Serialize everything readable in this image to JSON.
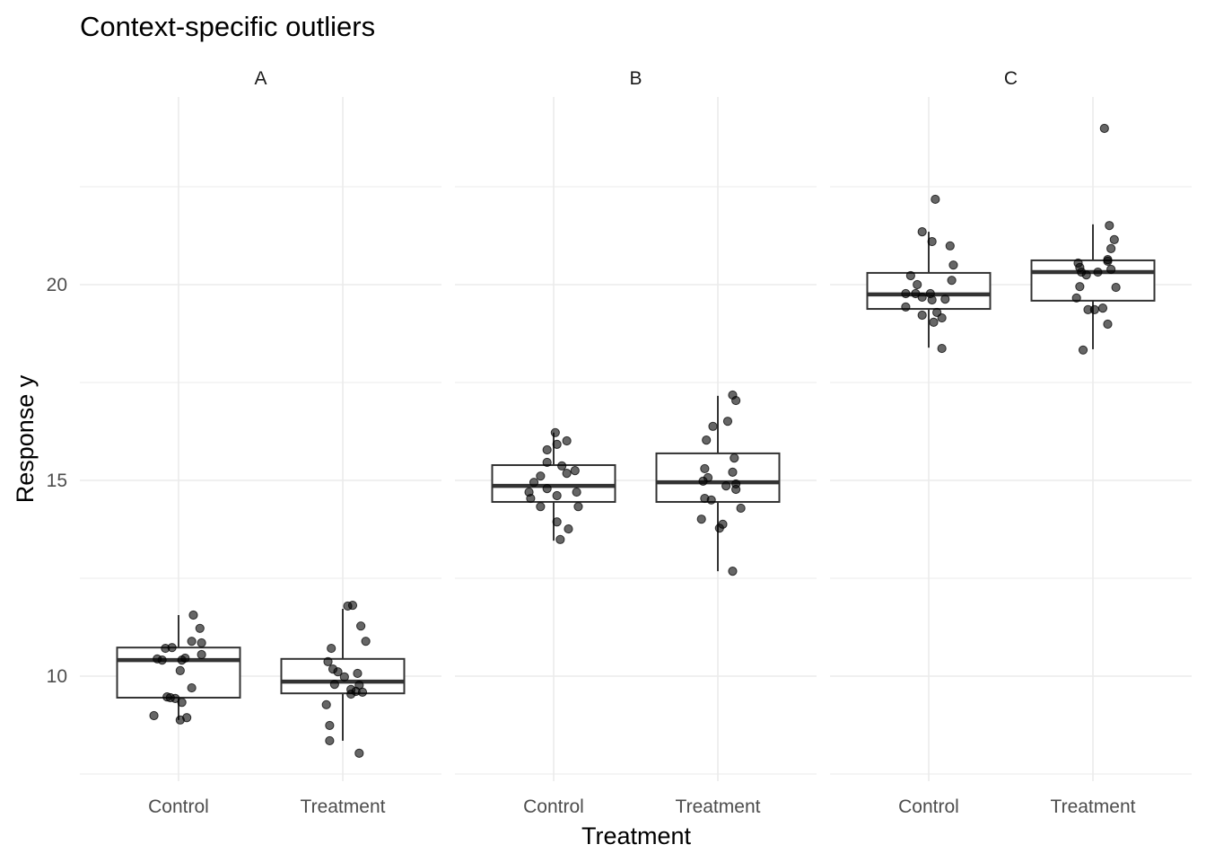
{
  "chart_data": {
    "type": "boxplot",
    "title": "Context-specific outliers",
    "xlabel": "Treatment",
    "ylabel": "Response y",
    "ylim": [
      7.3,
      24.6
    ],
    "yticks": [
      10,
      15,
      20
    ],
    "ytick_labels": [
      "10",
      "15",
      "20"
    ],
    "y_minor_gridlines": [
      7.5,
      12.5,
      17.5,
      22.5
    ],
    "grid": true,
    "categories": [
      "Control",
      "Treatment"
    ],
    "facets": [
      {
        "label": "A",
        "groups": [
          {
            "name": "Control",
            "box": {
              "lower_whisker": 8.88,
              "q1": 9.45,
              "median": 10.41,
              "q3": 10.73,
              "upper_whisker": 11.56
            },
            "points": [
              11.56,
              11.22,
              10.89,
              10.85,
              10.73,
              10.71,
              10.55,
              10.44,
              10.41,
              10.41,
              10.46,
              10.14,
              9.7,
              9.47,
              9.45,
              9.43,
              9.33,
              8.99,
              8.88,
              8.94
            ],
            "jitter": [
              0.09,
              0.13,
              0.08,
              0.14,
              -0.04,
              -0.08,
              0.14,
              -0.13,
              -0.1,
              0.02,
              0.04,
              0.01,
              0.08,
              -0.07,
              -0.05,
              -0.02,
              0.02,
              -0.15,
              0.01,
              0.05
            ]
          },
          {
            "name": "Treatment",
            "box": {
              "lower_whisker": 8.35,
              "q1": 9.56,
              "median": 9.86,
              "q3": 10.44,
              "upper_whisker": 11.72
            },
            "points": [
              11.79,
              11.81,
              11.28,
              10.89,
              10.71,
              10.37,
              10.18,
              10.11,
              9.98,
              10.07,
              9.79,
              9.77,
              9.66,
              9.61,
              9.59,
              9.54,
              9.27,
              8.74,
              8.35,
              8.03
            ],
            "jitter": [
              0.03,
              0.06,
              0.11,
              0.14,
              -0.07,
              -0.09,
              -0.06,
              -0.03,
              0.01,
              0.09,
              -0.05,
              0.1,
              0.05,
              0.08,
              0.12,
              0.05,
              -0.1,
              -0.08,
              -0.08,
              0.1
            ]
          }
        ]
      },
      {
        "label": "B",
        "groups": [
          {
            "name": "Control",
            "box": {
              "lower_whisker": 13.46,
              "q1": 14.45,
              "median": 14.86,
              "q3": 15.39,
              "upper_whisker": 16.22
            },
            "points": [
              16.22,
              16.01,
              15.92,
              15.78,
              15.46,
              15.37,
              15.25,
              15.18,
              15.11,
              14.95,
              14.79,
              14.7,
              14.7,
              14.61,
              14.54,
              14.33,
              14.33,
              13.94,
              13.76,
              13.49
            ],
            "jitter": [
              0.01,
              0.08,
              0.02,
              -0.04,
              -0.04,
              0.05,
              0.13,
              0.08,
              -0.08,
              -0.12,
              -0.04,
              -0.15,
              0.14,
              0.02,
              -0.14,
              -0.08,
              0.15,
              0.02,
              0.09,
              0.04
            ]
          },
          {
            "name": "Treatment",
            "box": {
              "lower_whisker": 12.68,
              "q1": 14.45,
              "median": 14.95,
              "q3": 15.69,
              "upper_whisker": 17.16
            },
            "points": [
              17.18,
              17.04,
              16.51,
              16.38,
              16.03,
              15.57,
              15.3,
              15.21,
              15.07,
              14.98,
              14.86,
              14.91,
              14.77,
              14.54,
              14.5,
              14.29,
              14.01,
              13.88,
              13.78,
              12.68
            ],
            "jitter": [
              0.09,
              0.11,
              0.06,
              -0.03,
              -0.07,
              0.1,
              -0.08,
              0.09,
              -0.06,
              -0.09,
              0.05,
              0.11,
              0.11,
              -0.08,
              -0.04,
              0.14,
              -0.1,
              0.03,
              0.01,
              0.09
            ]
          }
        ]
      },
      {
        "label": "C",
        "groups": [
          {
            "name": "Control",
            "box": {
              "lower_whisker": 18.39,
              "q1": 19.38,
              "median": 19.75,
              "q3": 20.3,
              "upper_whisker": 21.35
            },
            "points": [
              22.18,
              21.35,
              21.1,
              20.99,
              20.5,
              20.23,
              20.11,
              20.0,
              19.77,
              19.77,
              19.77,
              19.68,
              19.61,
              19.63,
              19.43,
              19.22,
              19.29,
              19.15,
              19.04,
              18.37
            ],
            "jitter": [
              0.04,
              -0.04,
              0.02,
              0.13,
              0.15,
              -0.11,
              0.14,
              -0.07,
              -0.14,
              -0.08,
              0.01,
              -0.04,
              0.02,
              0.1,
              -0.14,
              -0.04,
              0.05,
              0.08,
              0.03,
              0.08
            ]
          },
          {
            "name": "Treatment",
            "box": {
              "lower_whisker": 18.35,
              "q1": 19.59,
              "median": 20.32,
              "q3": 20.62,
              "upper_whisker": 21.54
            },
            "points": [
              23.99,
              21.51,
              21.15,
              20.92,
              20.64,
              20.6,
              20.55,
              20.44,
              20.39,
              20.32,
              20.25,
              20.32,
              19.95,
              19.93,
              19.66,
              19.36,
              19.36,
              19.4,
              18.99,
              18.33
            ],
            "jitter": [
              0.07,
              0.1,
              0.13,
              0.11,
              0.09,
              0.09,
              -0.09,
              -0.08,
              0.11,
              -0.07,
              -0.04,
              0.03,
              -0.08,
              0.14,
              -0.1,
              -0.03,
              0.01,
              0.06,
              0.09,
              -0.06
            ]
          }
        ]
      }
    ]
  }
}
